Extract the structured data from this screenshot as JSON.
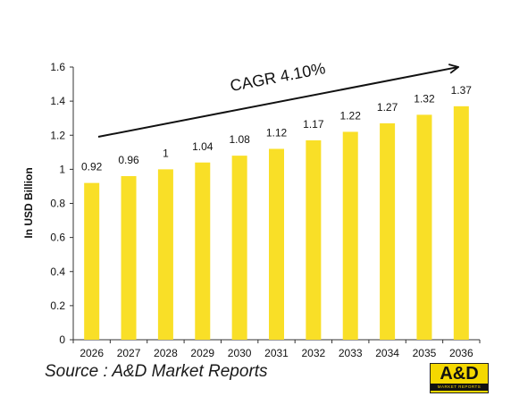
{
  "chart_data": {
    "type": "bar",
    "categories": [
      "2026",
      "2027",
      "2028",
      "2029",
      "2030",
      "2031",
      "2032",
      "2033",
      "2034",
      "2035",
      "2036"
    ],
    "values": [
      0.92,
      0.96,
      1,
      1.04,
      1.08,
      1.12,
      1.17,
      1.22,
      1.27,
      1.32,
      1.37
    ],
    "data_labels": [
      "0.92",
      "0.96",
      "1",
      "1.04",
      "1.08",
      "1.12",
      "1.17",
      "1.22",
      "1.27",
      "1.32",
      "1.37"
    ],
    "ylabel": "In USD Billion",
    "ylim": [
      0,
      1.6
    ],
    "yticks": [
      0,
      0.2,
      0.4,
      0.6,
      0.8,
      1,
      1.2,
      1.4,
      1.6
    ],
    "ytick_labels": [
      "0",
      "0.2",
      "0.4",
      "0.6",
      "0.8",
      "1",
      "1.2",
      "1.4",
      "1.6"
    ],
    "grid": false,
    "bar_color": "#f9df27",
    "annotation": "CAGR 4.10%"
  },
  "source": "Source : A&D Market Reports",
  "logo": {
    "main": "A&D",
    "sub": "MARKET REPORTS"
  }
}
